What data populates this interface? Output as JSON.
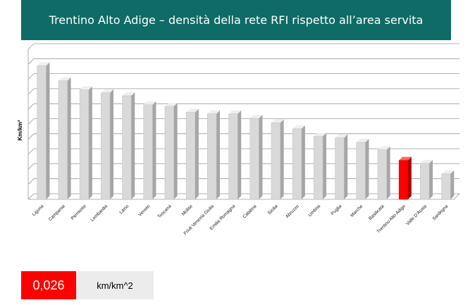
{
  "header": {
    "title": "Trentino Alto Adige – densità della rete RFI rispetto all’area servita"
  },
  "kpi": {
    "value": "0,026",
    "unit": "km/km^2"
  },
  "colors": {
    "header_bg": "#0e6b66",
    "bar_default": "#d9d9d9",
    "bar_highlight": "#ff0000",
    "kpi_bg": "#ff0000",
    "unit_bg": "#ececec"
  },
  "chart_data": {
    "type": "bar",
    "ylabel": "Km/km²",
    "categories": [
      "Liguria",
      "Campania",
      "Piemonte",
      "Lombardia",
      "Lazio",
      "Veneto",
      "Toscana",
      "Molise",
      "Friuli Venezia Giulia",
      "Emilia Romagna",
      "Calabria",
      "Sicilia",
      "Abruzzo",
      "Umbria",
      "Puglia",
      "Marche",
      "Basilicata",
      "Trentino Alto Adige",
      "Valle D'Aosta",
      "Sardegna"
    ],
    "values": [
      0.089,
      0.079,
      0.073,
      0.071,
      0.069,
      0.063,
      0.062,
      0.058,
      0.057,
      0.057,
      0.054,
      0.051,
      0.047,
      0.042,
      0.041,
      0.038,
      0.033,
      0.026,
      0.024,
      0.017
    ],
    "highlight": "Trentino Alto Adige",
    "ylim": [
      0,
      0.1
    ],
    "grid": true,
    "legend": "none"
  }
}
